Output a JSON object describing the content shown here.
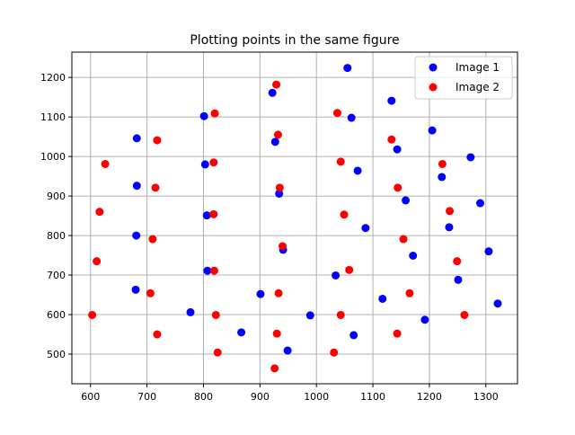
{
  "chart_data": {
    "type": "scatter",
    "title": "Plotting points in the same figure",
    "xlabel": "",
    "ylabel": "",
    "xlim": [
      567,
      1356
    ],
    "ylim": [
      425,
      1264
    ],
    "xticks": [
      600,
      700,
      800,
      900,
      1000,
      1100,
      1200,
      1300
    ],
    "yticks": [
      500,
      600,
      700,
      800,
      900,
      1000,
      1100,
      1200
    ],
    "grid": true,
    "legend_position": "top-right",
    "series": [
      {
        "name": "Image 1",
        "color": "#0000ff",
        "points": [
          [
            1055,
            1224
          ],
          [
            922,
            1161
          ],
          [
            1133,
            1141
          ],
          [
            801,
            1102
          ],
          [
            1062,
            1098
          ],
          [
            1205,
            1066
          ],
          [
            682,
            1046
          ],
          [
            927,
            1037
          ],
          [
            1143,
            1018
          ],
          [
            1273,
            998
          ],
          [
            803,
            980
          ],
          [
            1073,
            964
          ],
          [
            1222,
            948
          ],
          [
            682,
            926
          ],
          [
            1290,
            882
          ],
          [
            934,
            906
          ],
          [
            1158,
            889
          ],
          [
            806,
            851
          ],
          [
            1087,
            819
          ],
          [
            1235,
            821
          ],
          [
            681,
            800
          ],
          [
            941,
            764
          ],
          [
            1305,
            760
          ],
          [
            1171,
            749
          ],
          [
            807,
            711
          ],
          [
            1034,
            699
          ],
          [
            1251,
            688
          ],
          [
            680,
            663
          ],
          [
            901,
            652
          ],
          [
            1117,
            640
          ],
          [
            1321,
            628
          ],
          [
            777,
            606
          ],
          [
            989,
            598
          ],
          [
            1192,
            587
          ],
          [
            867,
            555
          ],
          [
            1066,
            548
          ],
          [
            949,
            509
          ]
        ]
      },
      {
        "name": "Image 2",
        "color": "#ff0000",
        "points": [
          [
            929,
            1182
          ],
          [
            820,
            1109
          ],
          [
            1037,
            1110
          ],
          [
            718,
            1041
          ],
          [
            932,
            1055
          ],
          [
            1133,
            1043
          ],
          [
            626,
            981
          ],
          [
            818,
            985
          ],
          [
            1043,
            987
          ],
          [
            1223,
            981
          ],
          [
            715,
            921
          ],
          [
            935,
            921
          ],
          [
            1144,
            921
          ],
          [
            616,
            860
          ],
          [
            818,
            854
          ],
          [
            1049,
            853
          ],
          [
            1236,
            862
          ],
          [
            710,
            791
          ],
          [
            940,
            773
          ],
          [
            1154,
            791
          ],
          [
            611,
            735
          ],
          [
            819,
            711
          ],
          [
            1058,
            713
          ],
          [
            1249,
            735
          ],
          [
            706,
            654
          ],
          [
            933,
            654
          ],
          [
            1165,
            654
          ],
          [
            603,
            599
          ],
          [
            822,
            599
          ],
          [
            1043,
            599
          ],
          [
            1262,
            599
          ],
          [
            718,
            550
          ],
          [
            930,
            552
          ],
          [
            1143,
            552
          ],
          [
            825,
            504
          ],
          [
            1031,
            504
          ],
          [
            926,
            464
          ]
        ]
      }
    ]
  }
}
